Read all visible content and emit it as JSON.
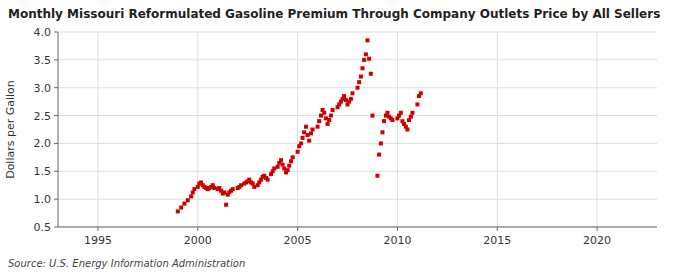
{
  "chart_data": {
    "type": "scatter",
    "title": "Monthly Missouri Reformulated Gasoline Premium Through Company Outlets Price by All Sellers",
    "y_label": "Dollars per Gallon",
    "annotations": [
      "Source: U.S. Energy Information Administration"
    ],
    "color": "#cc0000",
    "marker": "square",
    "grid": true,
    "xlim": [
      1993.0,
      2023.0
    ],
    "ylim": [
      0.5,
      4.0
    ],
    "xticks": [
      1995,
      2000,
      2005,
      2010,
      2015,
      2020
    ],
    "yticks": [
      0.5,
      {
        "value": 1.0,
        "label": "1.0"
      },
      1.5,
      {
        "value": 2.0,
        "label": "2.0"
      },
      2.5,
      {
        "value": 3.0,
        "label": "3.0"
      },
      3.5,
      {
        "value": 4.0,
        "label": "4.0"
      }
    ],
    "x": [
      1999.0,
      1999.17,
      1999.33,
      1999.5,
      1999.67,
      1999.75,
      1999.83,
      2000.0,
      2000.08,
      2000.17,
      2000.25,
      2000.33,
      2000.42,
      2000.5,
      2000.58,
      2000.67,
      2000.75,
      2000.83,
      2001.0,
      2001.08,
      2001.17,
      2001.25,
      2001.33,
      2001.42,
      2001.5,
      2001.58,
      2001.67,
      2001.75,
      2002.0,
      2002.08,
      2002.17,
      2002.33,
      2002.42,
      2002.5,
      2002.58,
      2002.67,
      2002.75,
      2002.83,
      2003.0,
      2003.08,
      2003.17,
      2003.25,
      2003.33,
      2003.42,
      2003.5,
      2003.67,
      2003.75,
      2003.83,
      2004.0,
      2004.08,
      2004.17,
      2004.25,
      2004.33,
      2004.42,
      2004.5,
      2004.58,
      2004.67,
      2004.75,
      2005.0,
      2005.08,
      2005.17,
      2005.25,
      2005.33,
      2005.42,
      2005.5,
      2005.58,
      2005.67,
      2005.75,
      2006.0,
      2006.08,
      2006.17,
      2006.25,
      2006.33,
      2006.42,
      2006.5,
      2006.58,
      2006.67,
      2006.75,
      2007.0,
      2007.08,
      2007.17,
      2007.25,
      2007.33,
      2007.42,
      2007.5,
      2007.58,
      2007.67,
      2007.75,
      2008.0,
      2008.08,
      2008.17,
      2008.25,
      2008.33,
      2008.42,
      2008.5,
      2008.58,
      2008.67,
      2008.75,
      2009.0,
      2009.08,
      2009.17,
      2009.25,
      2009.33,
      2009.42,
      2009.5,
      2009.58,
      2009.67,
      2009.75,
      2010.0,
      2010.08,
      2010.17,
      2010.25,
      2010.33,
      2010.42,
      2010.5,
      2010.58,
      2010.67,
      2010.75,
      2011.0,
      2011.08,
      2011.17
    ],
    "values": [
      0.78,
      0.85,
      0.92,
      0.98,
      1.05,
      1.12,
      1.18,
      1.22,
      1.28,
      1.3,
      1.25,
      1.22,
      1.2,
      1.18,
      1.2,
      1.22,
      1.25,
      1.2,
      1.18,
      1.2,
      1.15,
      1.1,
      1.12,
      0.9,
      1.08,
      1.12,
      1.15,
      1.18,
      1.2,
      1.22,
      1.25,
      1.28,
      1.3,
      1.32,
      1.35,
      1.3,
      1.28,
      1.22,
      1.25,
      1.3,
      1.35,
      1.4,
      1.42,
      1.38,
      1.35,
      1.45,
      1.5,
      1.55,
      1.58,
      1.65,
      1.7,
      1.62,
      1.55,
      1.48,
      1.52,
      1.6,
      1.68,
      1.75,
      1.85,
      1.95,
      2.0,
      2.1,
      2.2,
      2.3,
      2.15,
      2.05,
      2.18,
      2.25,
      2.3,
      2.4,
      2.5,
      2.6,
      2.55,
      2.45,
      2.35,
      2.42,
      2.5,
      2.6,
      2.65,
      2.7,
      2.75,
      2.8,
      2.85,
      2.78,
      2.7,
      2.75,
      2.8,
      2.9,
      3.0,
      3.1,
      3.2,
      3.35,
      3.5,
      3.6,
      3.85,
      3.52,
      3.25,
      2.5,
      1.42,
      1.8,
      2.0,
      2.2,
      2.4,
      2.5,
      2.55,
      2.48,
      2.45,
      2.42,
      2.45,
      2.5,
      2.55,
      2.4,
      2.35,
      2.3,
      2.25,
      2.42,
      2.48,
      2.55,
      2.7,
      2.85,
      2.9
    ]
  }
}
